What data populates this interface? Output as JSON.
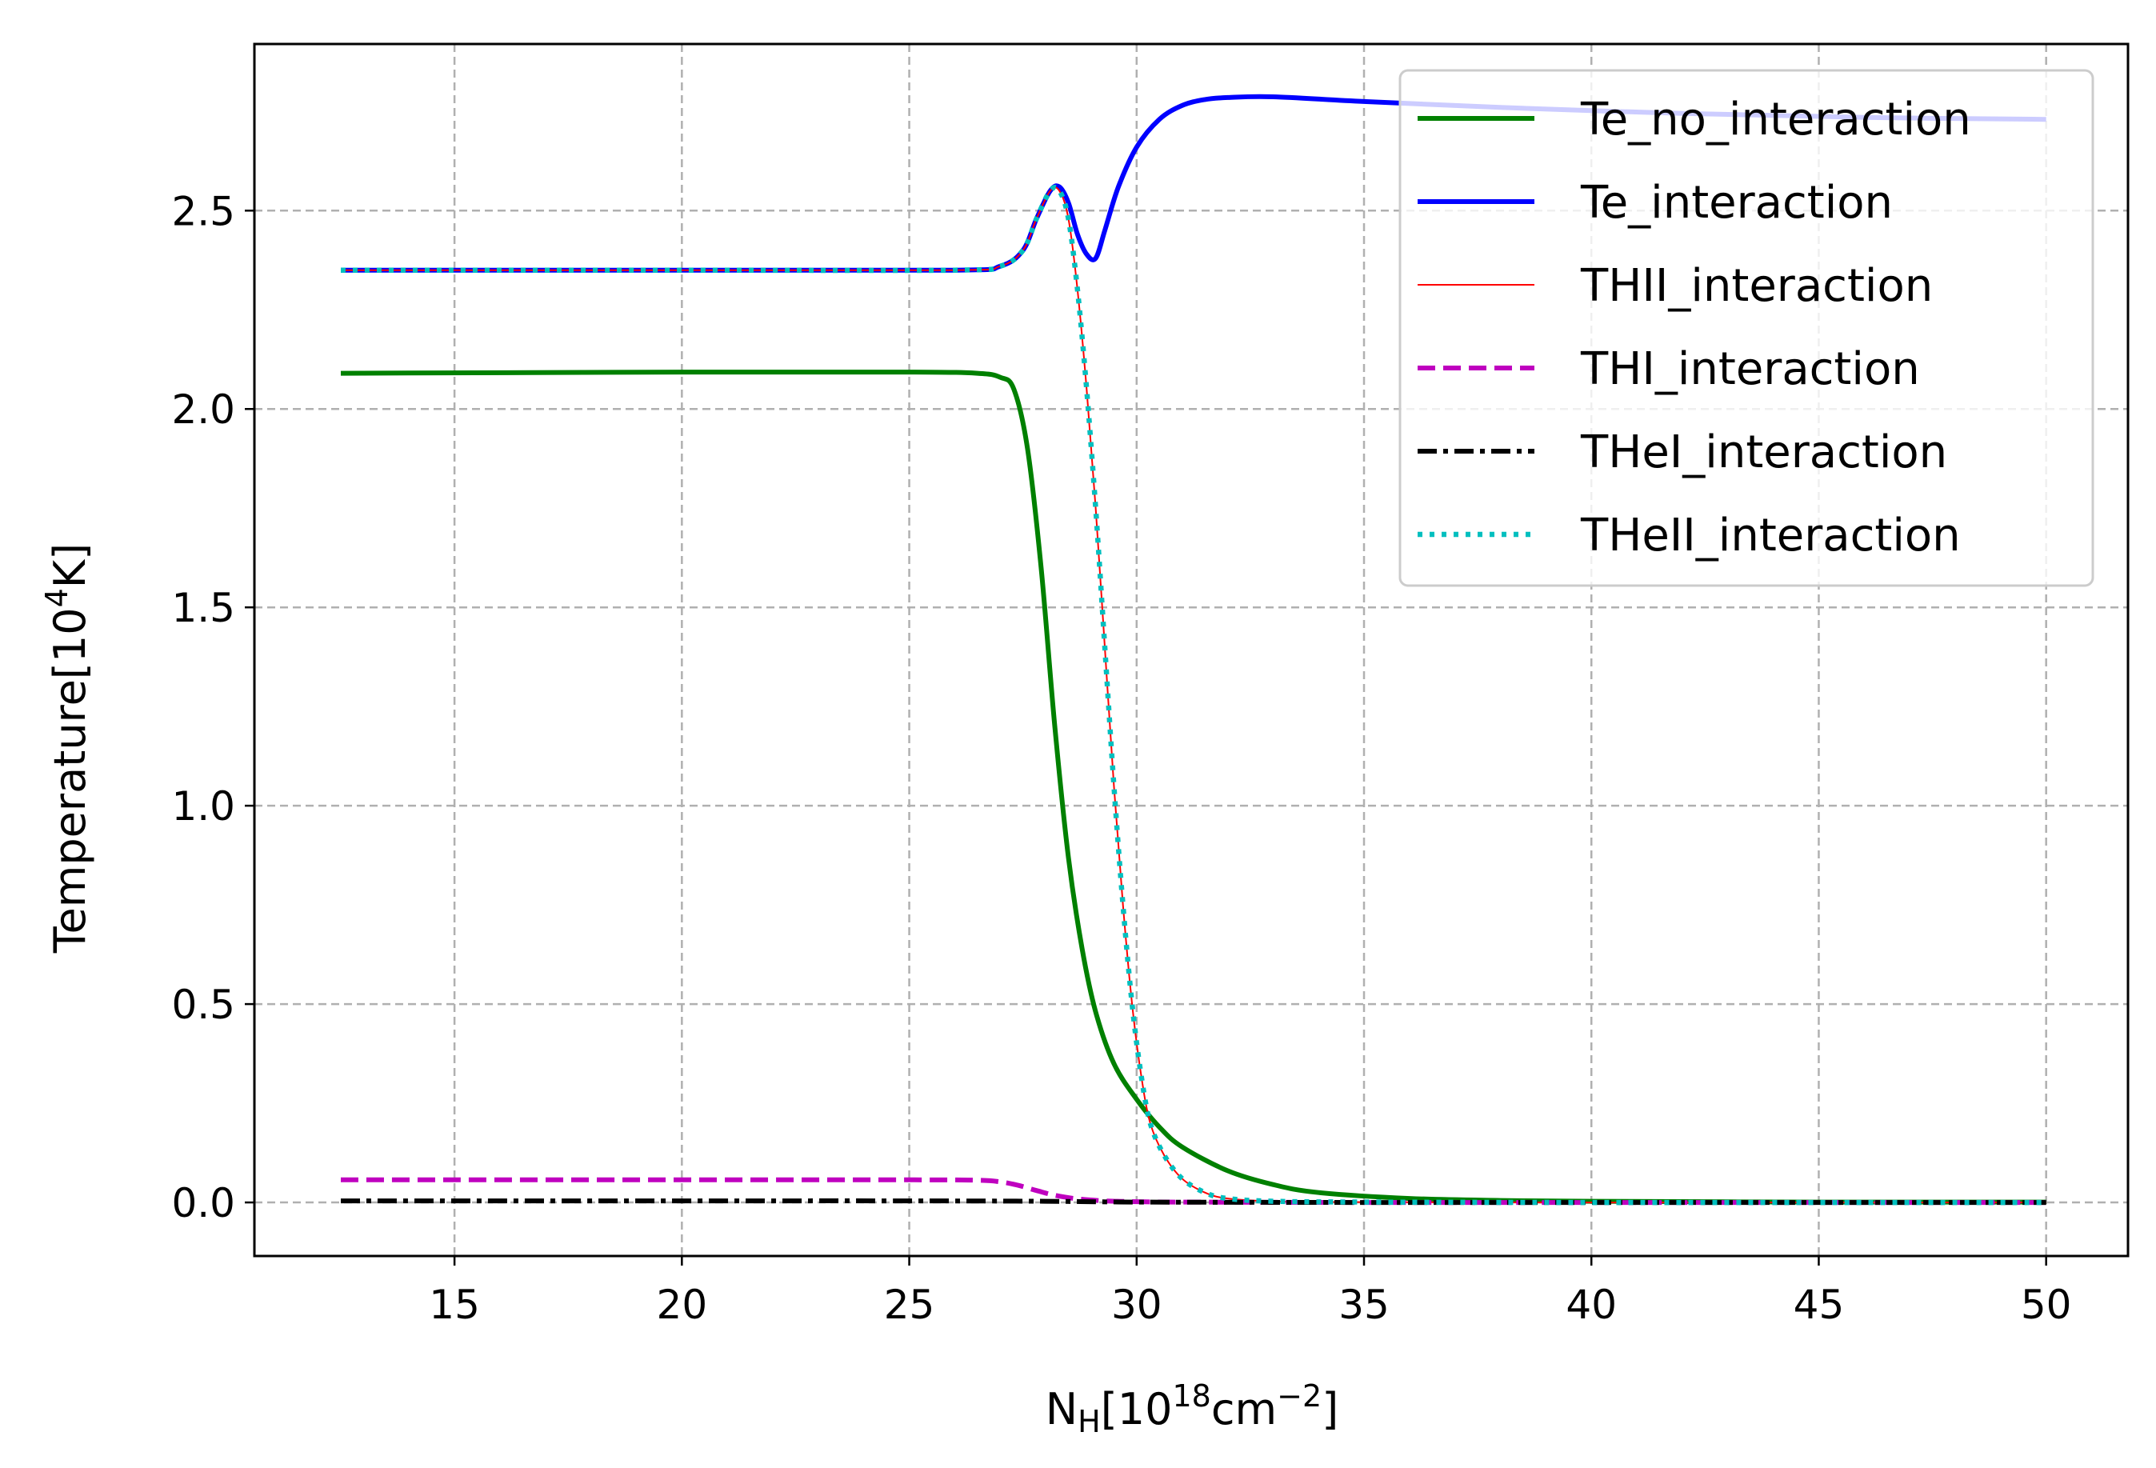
{
  "chart_data": {
    "type": "line",
    "xlabel": {
      "base": "N",
      "sub": "H",
      "text": "[10",
      "sup": "18",
      "text2": "cm",
      "sup2": "−2",
      "text3": "]"
    },
    "ylabel": {
      "text": "Temperature[10",
      "sup": "4",
      "text2": "K]"
    },
    "xlim": [
      10.6,
      51.8
    ],
    "ylim": [
      -0.135,
      2.92
    ],
    "xticks": [
      15,
      20,
      25,
      30,
      35,
      40,
      45,
      50
    ],
    "xtick_labels": [
      "15",
      "20",
      "25",
      "30",
      "35",
      "40",
      "45",
      "50"
    ],
    "yticks": [
      0.0,
      0.5,
      1.0,
      1.5,
      2.0,
      2.5
    ],
    "ytick_labels": [
      "0.0",
      "0.5",
      "1.0",
      "1.5",
      "2.0",
      "2.5"
    ],
    "grid": true,
    "legend_position": "upper-right",
    "series": [
      {
        "name": "Te_no_interaction",
        "color": "#008000",
        "style": "solid",
        "x": [
          12.5,
          20,
          25,
          26.5,
          27.0,
          27.3,
          27.6,
          27.9,
          28.2,
          28.5,
          28.8,
          29.1,
          29.5,
          30.0,
          30.5,
          31.0,
          32.0,
          33.0,
          34.0,
          36.0,
          38.0,
          40.0,
          45.0,
          50.0
        ],
        "y": [
          2.09,
          2.093,
          2.093,
          2.09,
          2.08,
          2.05,
          1.9,
          1.6,
          1.2,
          0.87,
          0.64,
          0.48,
          0.35,
          0.26,
          0.19,
          0.14,
          0.08,
          0.045,
          0.025,
          0.01,
          0.005,
          0.003,
          0.001,
          0.001
        ]
      },
      {
        "name": "Te_interaction",
        "color": "#0000ff",
        "style": "solid",
        "x": [
          12.5,
          20,
          26.0,
          27.0,
          27.5,
          27.8,
          28.1,
          28.3,
          28.5,
          28.7,
          28.9,
          29.1,
          29.3,
          29.6,
          30.0,
          30.5,
          31.0,
          31.5,
          32.0,
          33.0,
          35.0,
          38.0,
          42.0,
          46.0,
          50.0
        ],
        "y": [
          2.35,
          2.35,
          2.35,
          2.36,
          2.4,
          2.48,
          2.55,
          2.56,
          2.52,
          2.44,
          2.39,
          2.38,
          2.45,
          2.56,
          2.66,
          2.73,
          2.765,
          2.78,
          2.785,
          2.787,
          2.775,
          2.76,
          2.745,
          2.735,
          2.73
        ]
      },
      {
        "name": "THII_interaction",
        "color": "#ff0000",
        "style": "thin",
        "x": [
          12.5,
          20,
          26.0,
          27.0,
          27.5,
          27.8,
          28.1,
          28.3,
          28.5,
          28.7,
          28.9,
          29.1,
          29.3,
          29.5,
          29.7,
          29.9,
          30.1,
          30.3,
          30.6,
          31.0,
          31.5,
          32.0,
          33.0,
          35.0,
          40.0,
          50.0
        ],
        "y": [
          2.35,
          2.35,
          2.35,
          2.36,
          2.4,
          2.48,
          2.55,
          2.55,
          2.48,
          2.3,
          2.05,
          1.75,
          1.4,
          1.05,
          0.75,
          0.5,
          0.32,
          0.2,
          0.12,
          0.06,
          0.025,
          0.01,
          0.003,
          0.001,
          0.0,
          0.0
        ]
      },
      {
        "name": "THI_interaction",
        "color": "#bf00bf",
        "style": "dashed",
        "x": [
          12.5,
          20,
          25,
          26.5,
          27.0,
          27.4,
          27.8,
          28.2,
          28.7,
          29.3,
          30.0,
          31.0,
          35.0,
          40.0,
          50.0
        ],
        "y": [
          0.057,
          0.057,
          0.057,
          0.056,
          0.052,
          0.043,
          0.03,
          0.018,
          0.009,
          0.004,
          0.002,
          0.001,
          0.0,
          0.0,
          0.0
        ]
      },
      {
        "name": "THeI_interaction",
        "color": "#000000",
        "style": "dashdot",
        "x": [
          12.5,
          20,
          25,
          28.0,
          30.0,
          35.0,
          40.0,
          50.0
        ],
        "y": [
          0.004,
          0.004,
          0.004,
          0.003,
          0.001,
          0.0,
          0.0,
          0.0
        ]
      },
      {
        "name": "THeII_interaction",
        "color": "#00bfbf",
        "style": "dotted",
        "x": [
          12.5,
          20,
          26.0,
          27.0,
          27.5,
          27.8,
          28.1,
          28.3,
          28.5,
          28.7,
          28.9,
          29.1,
          29.3,
          29.5,
          29.7,
          29.9,
          30.1,
          30.3,
          30.6,
          31.0,
          31.5,
          32.0,
          33.0,
          35.0,
          40.0,
          50.0
        ],
        "y": [
          2.35,
          2.35,
          2.35,
          2.36,
          2.4,
          2.48,
          2.55,
          2.55,
          2.48,
          2.3,
          2.05,
          1.75,
          1.4,
          1.05,
          0.75,
          0.5,
          0.32,
          0.2,
          0.12,
          0.06,
          0.025,
          0.01,
          0.003,
          0.001,
          0.0,
          0.0
        ]
      }
    ]
  }
}
